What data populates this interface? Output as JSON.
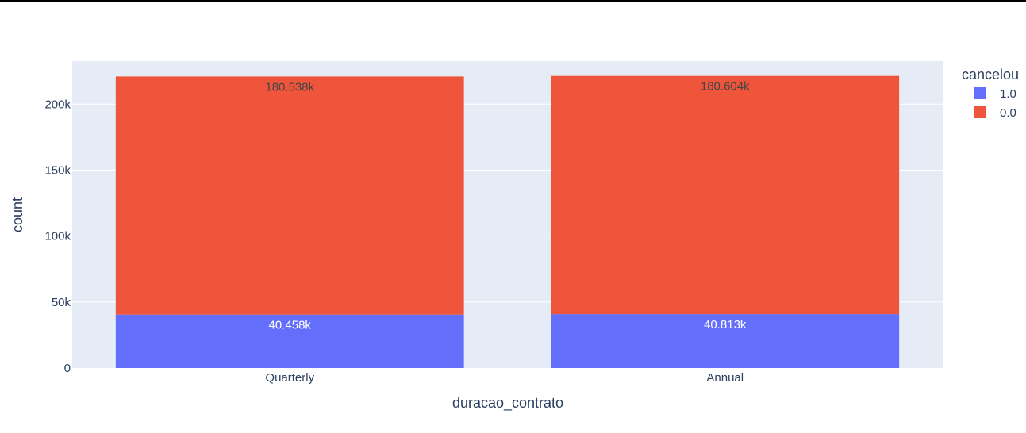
{
  "chart_data": {
    "type": "bar",
    "barmode": "stack",
    "categories": [
      "Quarterly",
      "Annual"
    ],
    "series": [
      {
        "name": "1.0",
        "values": [
          40458,
          40813
        ],
        "labels": [
          "40.458k",
          "40.813k"
        ],
        "color": "#636efa"
      },
      {
        "name": "0.0",
        "values": [
          180538,
          180604
        ],
        "labels": [
          "180.538k",
          "180.604k"
        ],
        "color": "#ef553b"
      }
    ],
    "xlabel": "duracao_contrato",
    "ylabel": "count",
    "ylim": [
      0,
      232650
    ],
    "yticks": [
      0,
      50000,
      100000,
      150000,
      200000
    ],
    "ytick_labels": [
      "0",
      "50k",
      "100k",
      "150k",
      "200k"
    ],
    "legend": {
      "title": "cancelou",
      "placement": "top-right"
    },
    "grid": true,
    "plot_bg": "#e5ecf6"
  }
}
